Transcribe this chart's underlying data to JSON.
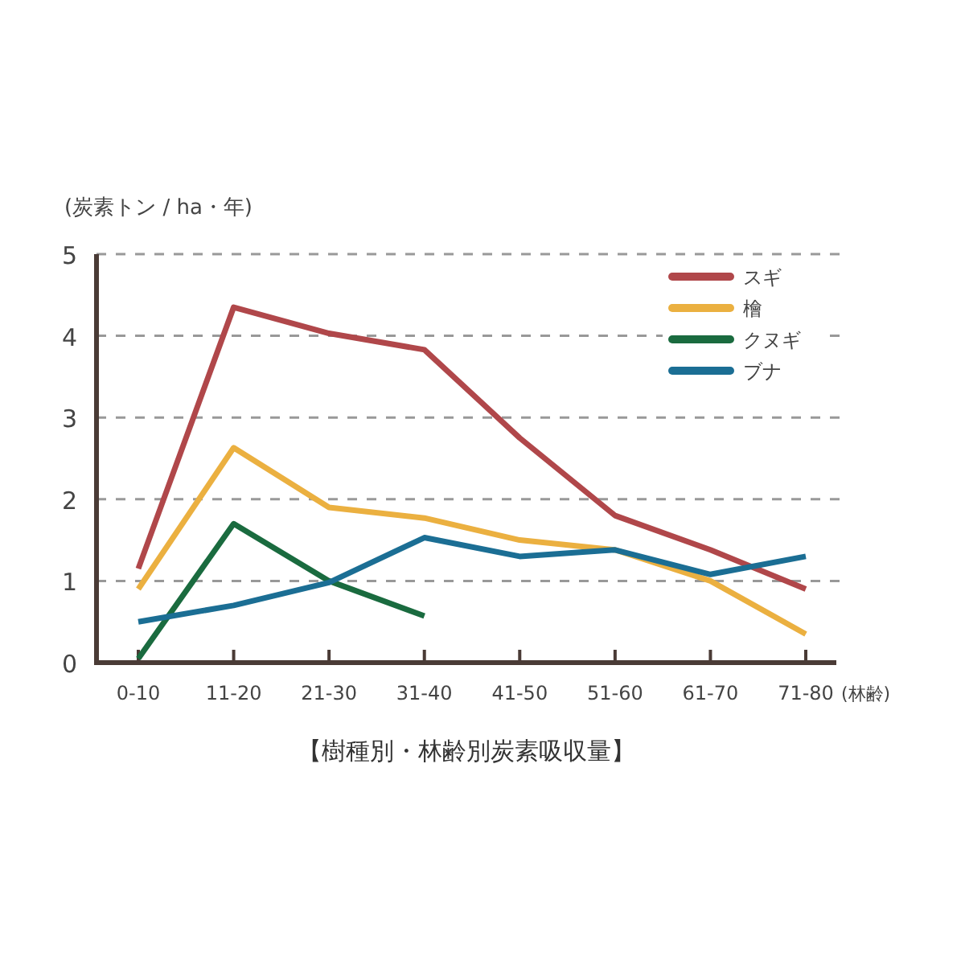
{
  "chart_data": {
    "type": "line",
    "title": "【樹種別・林齢別炭素吸収量】",
    "ylabel": "(炭素トン / ha・年)",
    "xlabel": "(林齢)",
    "categories": [
      "0-10",
      "11-20",
      "21-30",
      "31-40",
      "41-50",
      "51-60",
      "61-70",
      "71-80"
    ],
    "series": [
      {
        "name": "スギ",
        "color": "#b0474a",
        "values": [
          1.15,
          4.35,
          4.03,
          3.83,
          2.75,
          1.8,
          1.38,
          0.9
        ]
      },
      {
        "name": "檜",
        "color": "#ebb040",
        "values": [
          0.9,
          2.63,
          1.9,
          1.77,
          1.5,
          1.38,
          1.0,
          0.35
        ]
      },
      {
        "name": "クヌギ",
        "color": "#1a6b3f",
        "values": [
          0.05,
          1.7,
          1.0,
          0.57,
          null,
          null,
          null,
          null
        ]
      },
      {
        "name": "ブナ",
        "color": "#1b6e94",
        "values": [
          0.5,
          0.7,
          0.98,
          1.53,
          1.3,
          1.38,
          1.08,
          1.3
        ]
      }
    ],
    "ylim": [
      0,
      5
    ],
    "yticks": [
      0,
      1,
      2,
      3,
      4,
      5
    ],
    "grid": "y",
    "legend": "top right",
    "marker": "none",
    "line_style": "solid"
  }
}
